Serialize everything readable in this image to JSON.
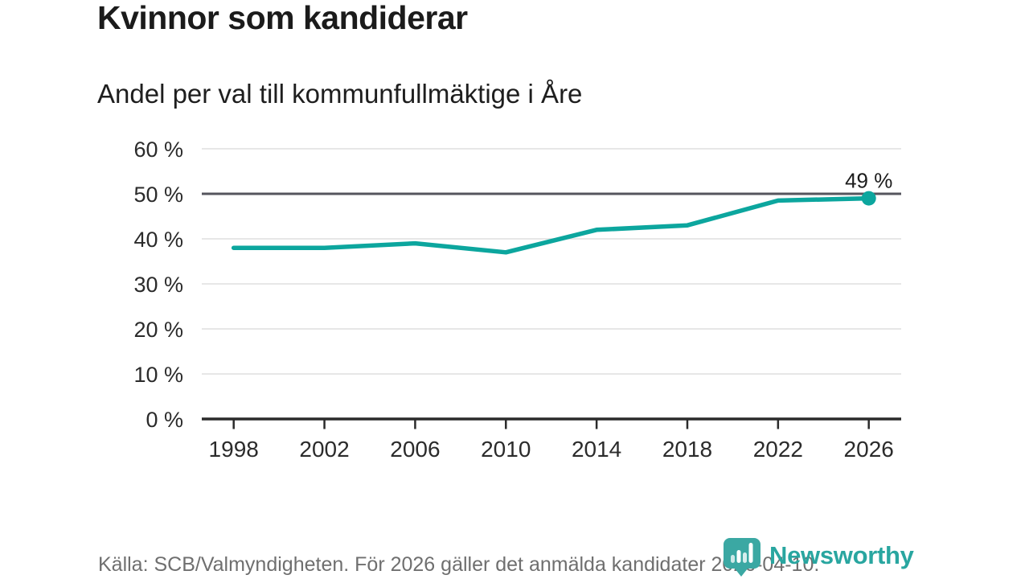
{
  "header": {
    "title": "Kvinnor som kandiderar",
    "subtitle": "Andel per val till kommunfullmäktige i Åre"
  },
  "chart_data": {
    "type": "line",
    "x": [
      1998,
      2002,
      2006,
      2010,
      2014,
      2018,
      2022,
      2026
    ],
    "values": [
      38,
      38,
      39,
      37,
      42,
      43,
      48.5,
      49
    ],
    "unit": "%",
    "end_label": "49 %",
    "ylim": [
      0,
      60
    ],
    "grid": true,
    "reference_line": 50,
    "y_ticks": [
      {
        "value": 60,
        "label": "60 %"
      },
      {
        "value": 50,
        "label": "50 %"
      },
      {
        "value": 40,
        "label": "40 %"
      },
      {
        "value": 30,
        "label": "30 %"
      },
      {
        "value": 20,
        "label": "20 %"
      },
      {
        "value": 10,
        "label": "10 %"
      },
      {
        "value": 0,
        "label": "0 %"
      }
    ]
  },
  "footer": {
    "source": "Källa: SCB/Valmyndigheten. För 2026 gäller det anmälda kandidater 2026-04-10.",
    "brand": "Newsworthy"
  },
  "colors": {
    "line": "#0ca69e",
    "grid": "#dfdfdf",
    "reference": "#55555e",
    "axis": "#2b2b2b",
    "label_text": "#1b1b1b",
    "muted_text": "#6f6f6f",
    "logo_badge": "#3ba8a3",
    "logo_bars": "#ffffff",
    "wordmark": "#29a6a0"
  }
}
